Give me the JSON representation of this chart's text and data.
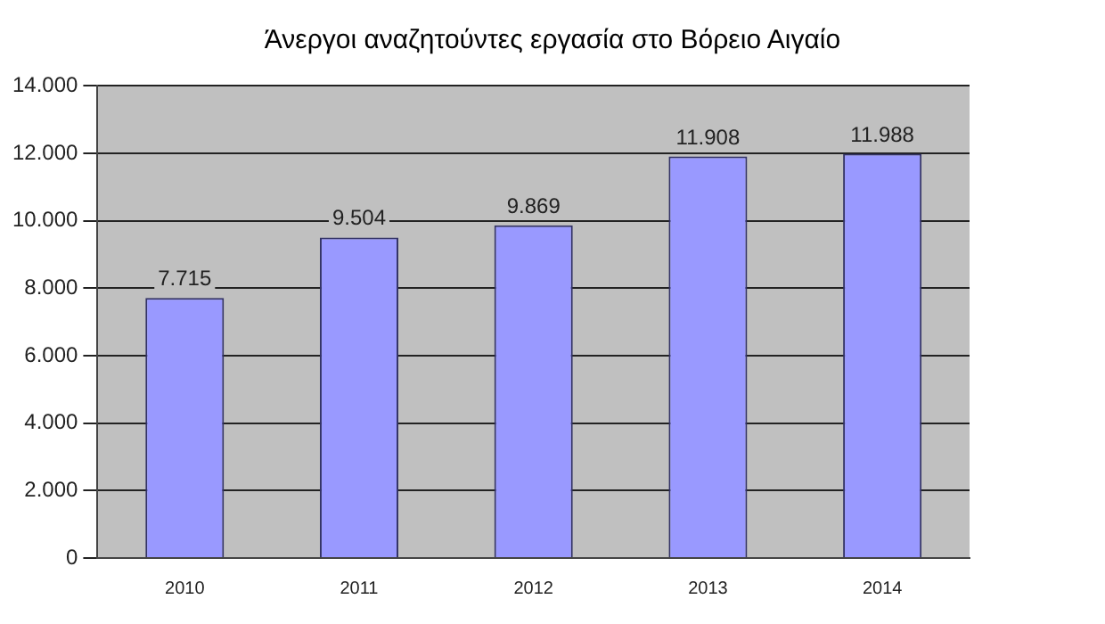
{
  "chart_data": {
    "type": "bar",
    "title": "Άνεργοι αναζητούντες εργασία στο Βόρειο Αιγαίο",
    "categories": [
      "2010",
      "2011",
      "2012",
      "2013",
      "2014"
    ],
    "values": [
      7715,
      9504,
      9869,
      11908,
      11988
    ],
    "color": "#9999ff",
    "value_labels": [
      "7.715",
      "9.504",
      "9.869",
      "11.908",
      "11.988"
    ],
    "ylim": [
      0,
      14000
    ],
    "yticks": [
      {
        "value": 0,
        "label": "0"
      },
      {
        "value": 2000,
        "label": "2.000"
      },
      {
        "value": 4000,
        "label": "4.000"
      },
      {
        "value": 6000,
        "label": "6.000"
      },
      {
        "value": 8000,
        "label": "8.000"
      },
      {
        "value": 10000,
        "label": "10.000"
      },
      {
        "value": 12000,
        "label": "12.000"
      },
      {
        "value": 14000,
        "label": "14.000"
      }
    ],
    "grid": "y"
  }
}
